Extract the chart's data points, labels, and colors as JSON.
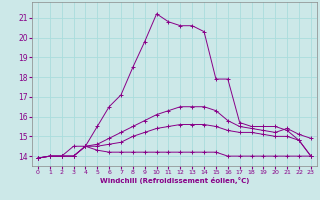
{
  "xlabel": "Windchill (Refroidissement éolien,°C)",
  "bg_color": "#cce8e8",
  "grid_color": "#aadddd",
  "line_color": "#880088",
  "xlim": [
    -0.5,
    23.5
  ],
  "ylim": [
    13.5,
    21.8
  ],
  "xticks": [
    0,
    1,
    2,
    3,
    4,
    5,
    6,
    7,
    8,
    9,
    10,
    11,
    12,
    13,
    14,
    15,
    16,
    17,
    18,
    19,
    20,
    21,
    22,
    23
  ],
  "yticks": [
    14,
    15,
    16,
    17,
    18,
    19,
    20,
    21
  ],
  "series": [
    {
      "x": [
        0,
        1,
        2,
        3,
        4,
        5,
        6,
        7,
        8,
        9,
        10,
        11,
        12,
        13,
        14,
        15,
        16,
        17,
        18,
        19,
        20,
        21,
        22,
        23
      ],
      "y": [
        13.9,
        14.0,
        14.0,
        14.0,
        14.5,
        14.3,
        14.2,
        14.2,
        14.2,
        14.2,
        14.2,
        14.2,
        14.2,
        14.2,
        14.2,
        14.2,
        14.0,
        14.0,
        14.0,
        14.0,
        14.0,
        14.0,
        14.0,
        14.0
      ],
      "marker": "+"
    },
    {
      "x": [
        0,
        1,
        2,
        3,
        4,
        5,
        6,
        7,
        8,
        9,
        10,
        11,
        12,
        13,
        14,
        15,
        16,
        17,
        18,
        19,
        20,
        21,
        22,
        23
      ],
      "y": [
        13.9,
        14.0,
        14.0,
        14.0,
        14.5,
        14.5,
        14.6,
        14.7,
        15.0,
        15.2,
        15.4,
        15.5,
        15.6,
        15.6,
        15.6,
        15.5,
        15.3,
        15.2,
        15.2,
        15.1,
        15.0,
        15.0,
        14.8,
        14.0
      ],
      "marker": "+"
    },
    {
      "x": [
        0,
        1,
        2,
        3,
        4,
        5,
        6,
        7,
        8,
        9,
        10,
        11,
        12,
        13,
        14,
        15,
        16,
        17,
        18,
        19,
        20,
        21,
        22,
        23
      ],
      "y": [
        13.9,
        14.0,
        14.0,
        14.0,
        14.5,
        14.6,
        14.9,
        15.2,
        15.5,
        15.8,
        16.1,
        16.3,
        16.5,
        16.5,
        16.5,
        16.3,
        15.8,
        15.5,
        15.4,
        15.3,
        15.2,
        15.4,
        15.1,
        14.9
      ],
      "marker": "+"
    },
    {
      "x": [
        0,
        1,
        2,
        3,
        4,
        5,
        6,
        7,
        8,
        9,
        10,
        11,
        12,
        13,
        14,
        15,
        16,
        17,
        18,
        19,
        20,
        21,
        22,
        23
      ],
      "y": [
        13.9,
        14.0,
        14.0,
        14.5,
        14.5,
        15.5,
        16.5,
        17.1,
        18.5,
        19.8,
        21.2,
        20.8,
        20.6,
        20.6,
        20.3,
        17.9,
        17.9,
        15.7,
        15.5,
        15.5,
        15.5,
        15.3,
        14.8,
        14.0
      ],
      "marker": "+"
    }
  ]
}
